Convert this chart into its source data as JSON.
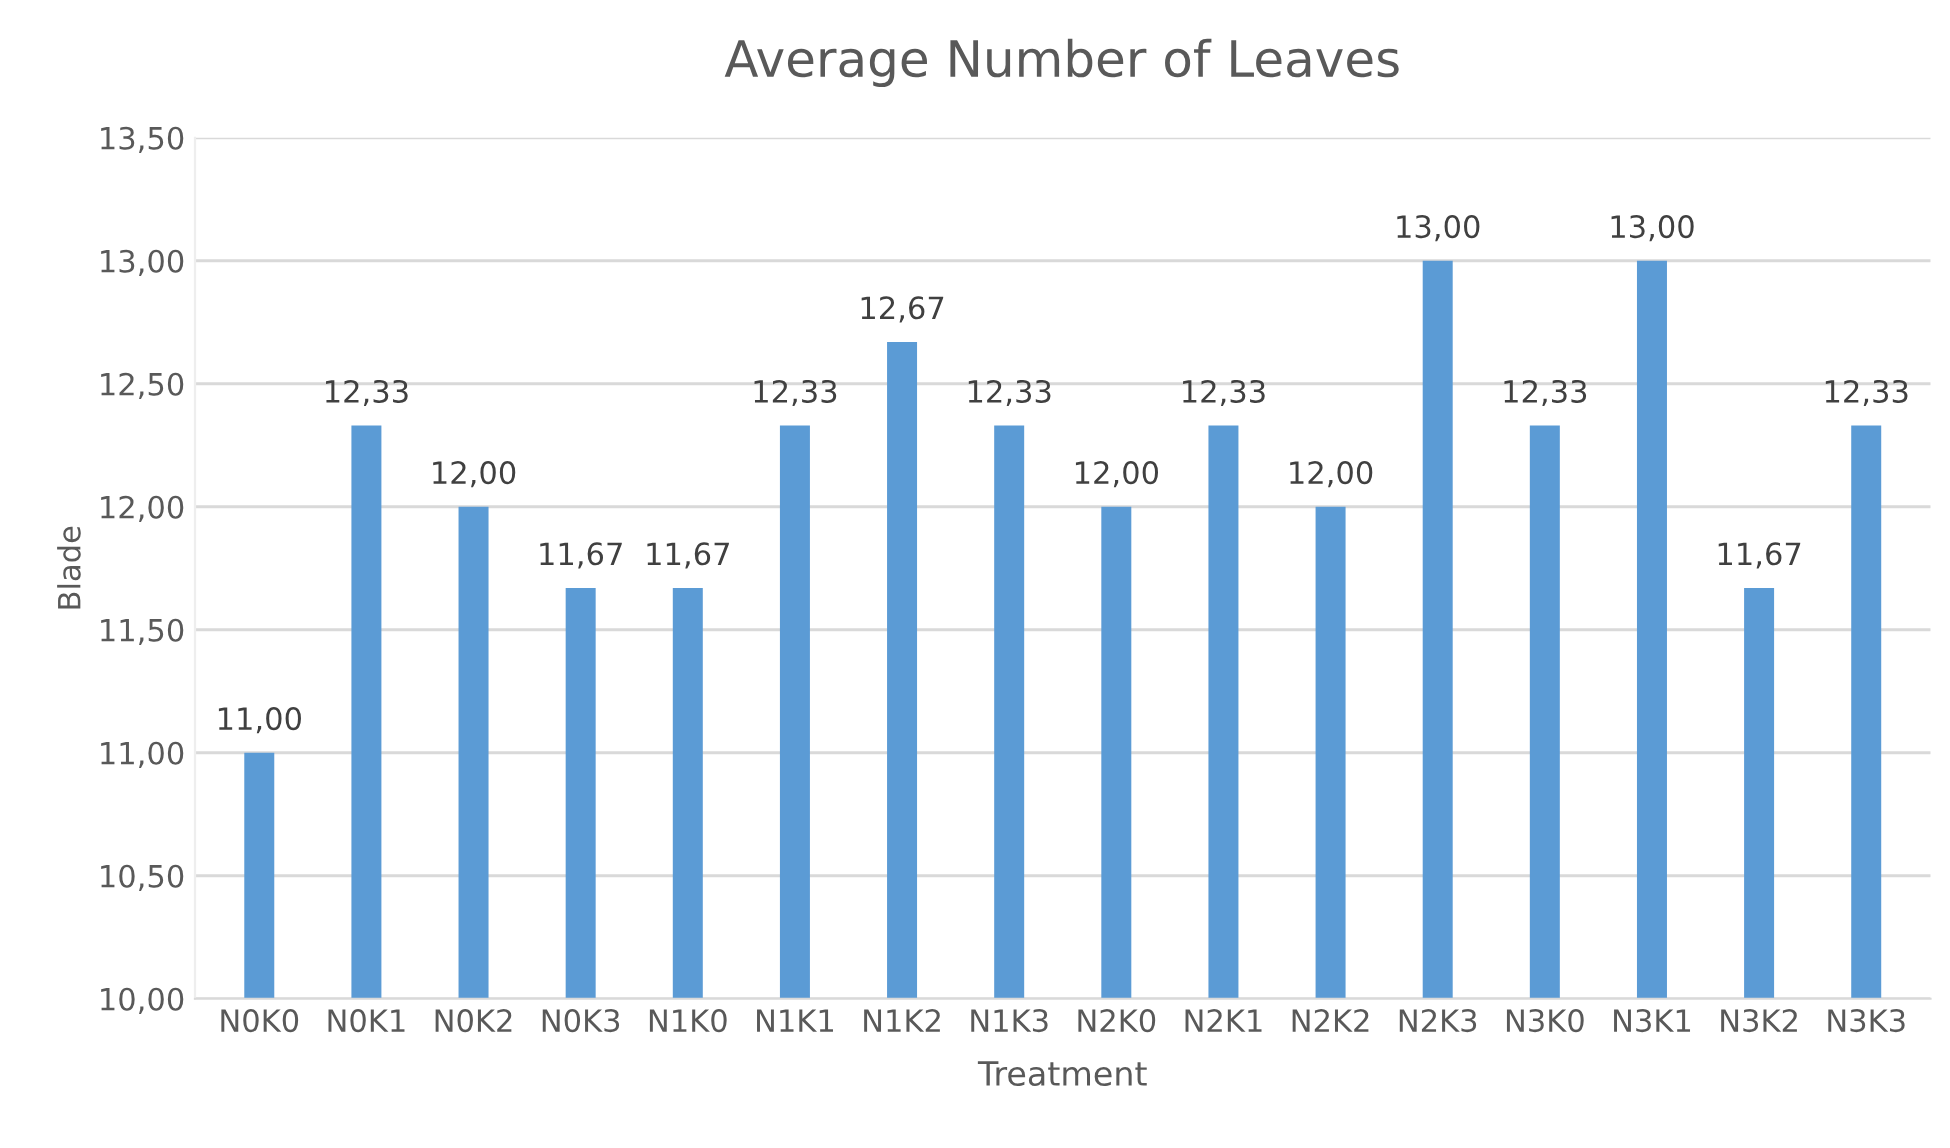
{
  "chart_data": {
    "type": "bar",
    "title": "Average Number of Leaves",
    "xlabel": "Treatment",
    "ylabel": "Blade",
    "categories": [
      "N0K0",
      "N0K1",
      "N0K2",
      "N0K3",
      "N1K0",
      "N1K1",
      "N1K2",
      "N1K3",
      "N2K0",
      "N2K1",
      "N2K2",
      "N2K3",
      "N3K0",
      "N3K1",
      "N3K2",
      "N3K3"
    ],
    "values": [
      11.0,
      12.33,
      12.0,
      11.67,
      11.67,
      12.33,
      12.67,
      12.33,
      12.0,
      12.33,
      12.0,
      13.0,
      12.33,
      13.0,
      11.67,
      12.33
    ],
    "value_labels": [
      "11,00",
      "12,33",
      "12,00",
      "11,67",
      "11,67",
      "12,33",
      "12,67",
      "12,33",
      "12,00",
      "12,33",
      "12,00",
      "13,00",
      "12,33",
      "13,00",
      "11,67",
      "12,33"
    ],
    "color": "#5b9bd5",
    "ylim": [
      10,
      13.5
    ],
    "yticks": [
      {
        "value": 10,
        "label": "10,00"
      },
      {
        "value": 10.5,
        "label": "10,50"
      },
      {
        "value": 11,
        "label": "11,00"
      },
      {
        "value": 11.5,
        "label": "11,50"
      },
      {
        "value": 12,
        "label": "12,00"
      },
      {
        "value": 12.5,
        "label": "12,50"
      },
      {
        "value": 13,
        "label": "13,00"
      },
      {
        "value": 13.5,
        "label": "13,50"
      }
    ],
    "grid": "y"
  }
}
